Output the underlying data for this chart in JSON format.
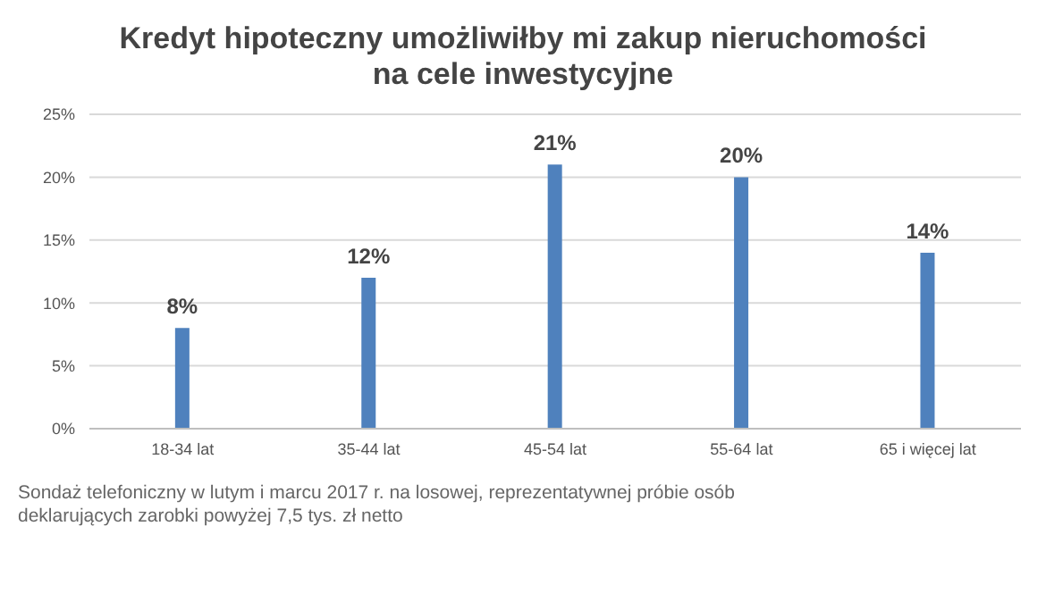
{
  "chart_data": {
    "type": "bar",
    "title": "Kredyt hipoteczny umożliwiłby mi zakup nieruchomości na cele inwestycyjne",
    "categories": [
      "18-34 lat",
      "35-44 lat",
      "45-54 lat",
      "55-64 lat",
      "65 i więcej lat"
    ],
    "values": [
      8,
      12,
      21,
      20,
      14
    ],
    "value_labels": [
      "8%",
      "12%",
      "21%",
      "20%",
      "14%"
    ],
    "color": "#4f81bd",
    "ylim": [
      0,
      25
    ],
    "yticks": [
      {
        "value": 0,
        "label": "0%"
      },
      {
        "value": 5,
        "label": "5%"
      },
      {
        "value": 10,
        "label": "10%"
      },
      {
        "value": 15,
        "label": "15%"
      },
      {
        "value": 20,
        "label": "20%"
      },
      {
        "value": 25,
        "label": "25%"
      }
    ],
    "grid": "y",
    "annotations": [
      "Sondaż telefoniczny w lutym i marcu 2017 r. na losowej, reprezentatywnej próbie osób deklarujących zarobki powyżej 7,5 tys. zł netto"
    ]
  }
}
